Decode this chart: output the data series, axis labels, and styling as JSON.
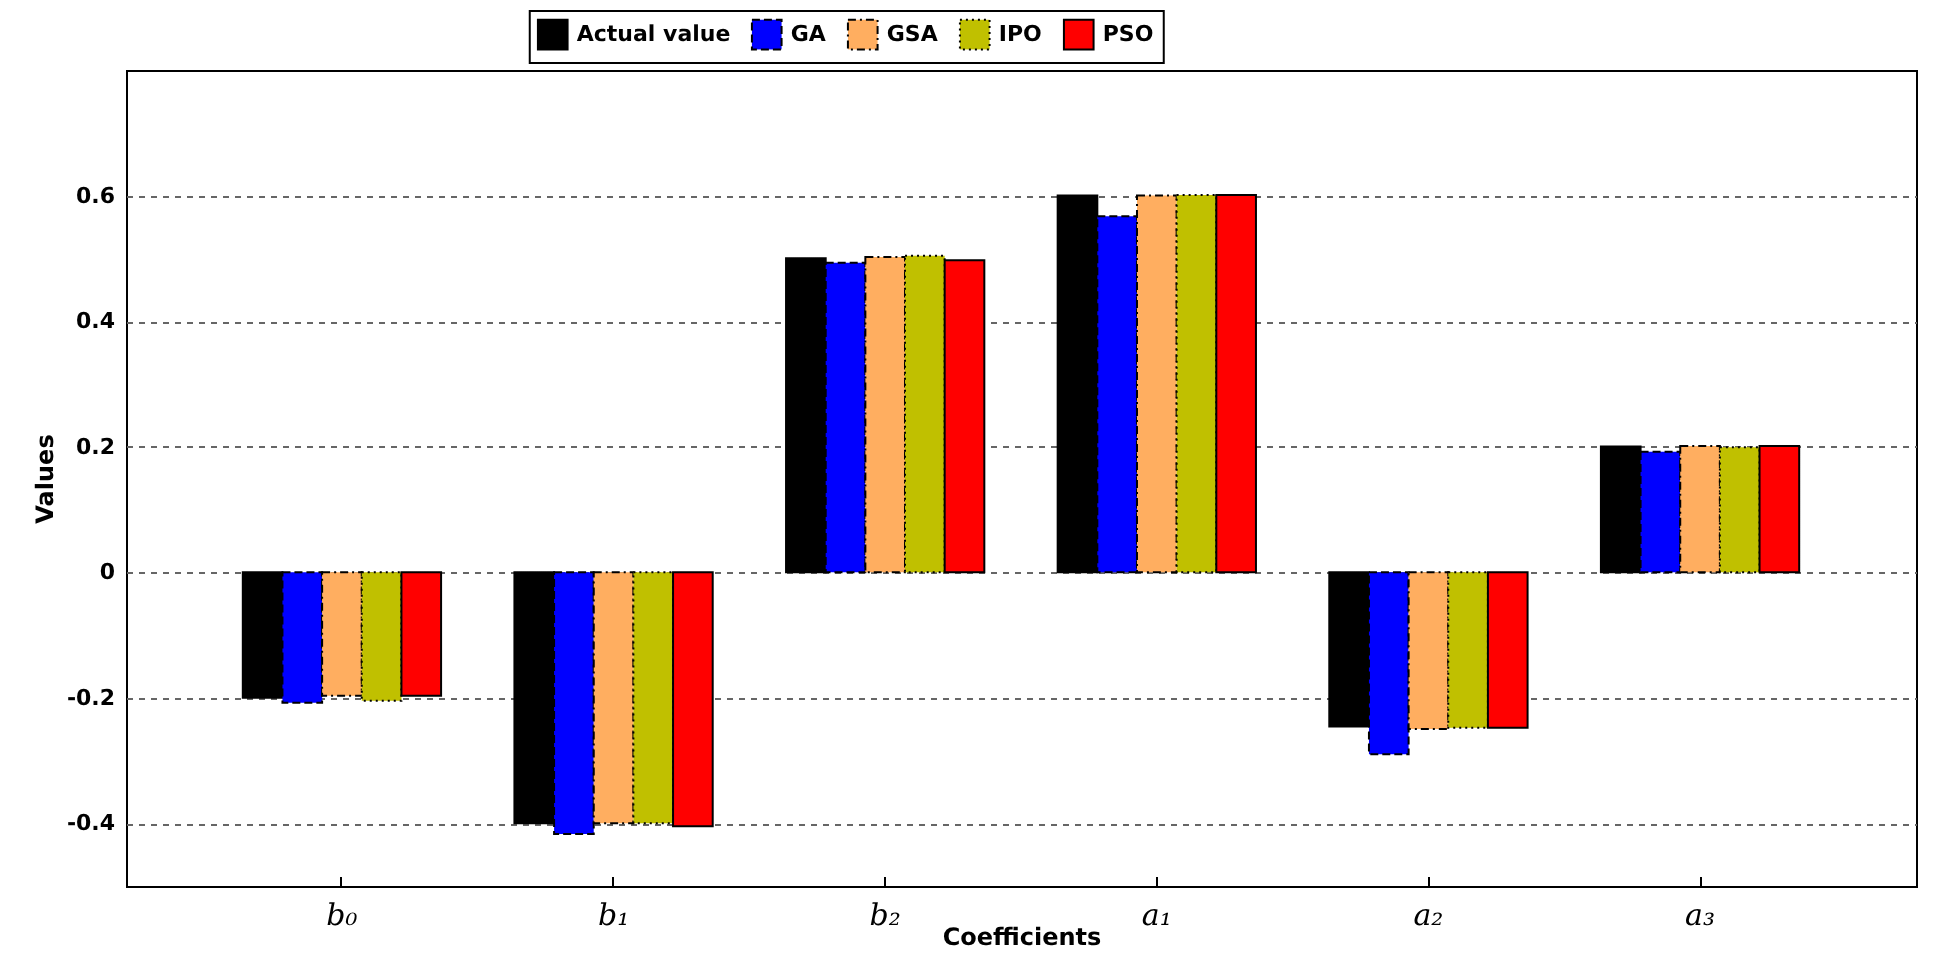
{
  "chart_data": {
    "type": "bar",
    "xlabel": "Coefficients",
    "ylabel": "Values",
    "categories": [
      "b₀",
      "b₁",
      "b₂",
      "a₁",
      "a₂",
      "a₃"
    ],
    "series": [
      {
        "name": "Actual value",
        "color": "#000000",
        "line_style": "solid",
        "values": [
          -0.2,
          -0.4,
          0.5,
          0.6,
          -0.246,
          0.2
        ]
      },
      {
        "name": "GA",
        "color": "#0000ff",
        "line_style": "dashed",
        "values": [
          -0.208,
          -0.417,
          0.493,
          0.567,
          -0.29,
          0.192
        ]
      },
      {
        "name": "GSA",
        "color": "#ffae60",
        "line_style": "dashdot",
        "values": [
          -0.197,
          -0.4,
          0.502,
          0.6,
          -0.25,
          0.201
        ]
      },
      {
        "name": "IPO",
        "color": "#c0c000",
        "line_style": "dotted",
        "values": [
          -0.205,
          -0.4,
          0.504,
          0.601,
          -0.248,
          0.199
        ]
      },
      {
        "name": "PSO",
        "color": "#ff0000",
        "line_style": "solid",
        "values": [
          -0.197,
          -0.405,
          0.497,
          0.601,
          -0.248,
          0.201
        ]
      }
    ],
    "ylim": [
      -0.5,
      0.8
    ],
    "yticks": [
      -0.4,
      -0.2,
      0,
      0.2,
      0.4,
      0.6
    ],
    "grid": "y",
    "legend": "top"
  }
}
